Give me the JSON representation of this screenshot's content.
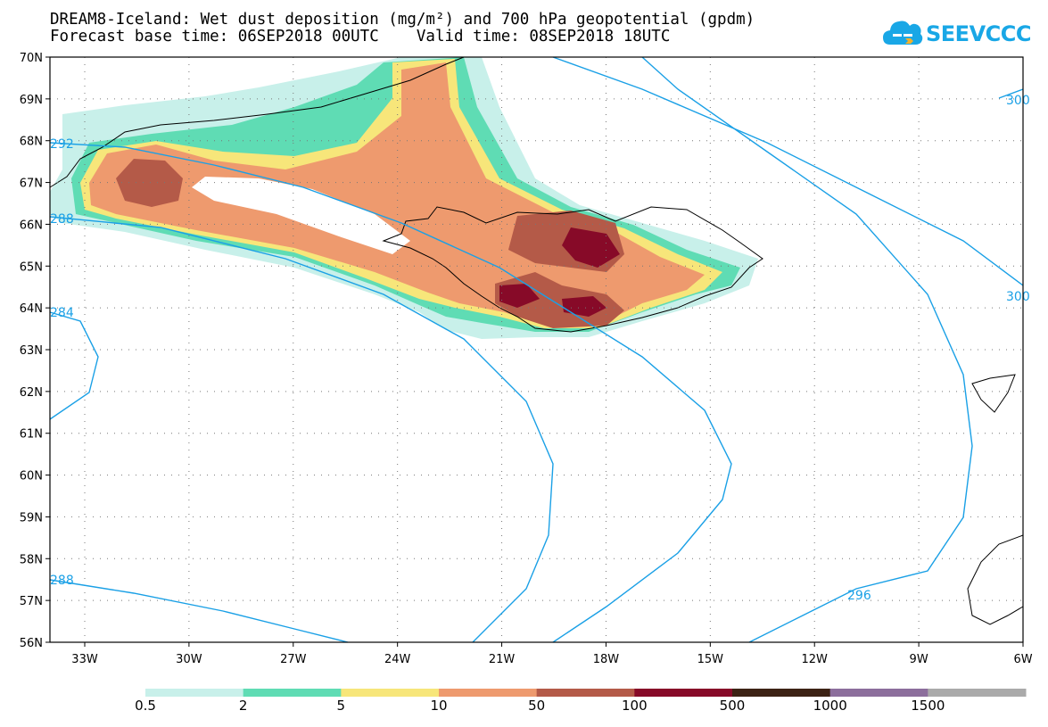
{
  "title": {
    "line1": "DREAM8-Iceland: Wet dust deposition (mg/m²) and 700 hPa geopotential (gpdm)",
    "line2": "Forecast base time: 06SEP2018 00UTC    Valid time: 08SEP2018 18UTC"
  },
  "logo": {
    "text": "SEEVCCC",
    "icon": "cloud-logo-icon"
  },
  "map": {
    "lat_labels": [
      "70N",
      "69N",
      "68N",
      "67N",
      "66N",
      "65N",
      "64N",
      "63N",
      "62N",
      "61N",
      "60N",
      "59N",
      "58N",
      "57N",
      "56N"
    ],
    "lon_labels": [
      "33W",
      "30W",
      "27W",
      "24W",
      "21W",
      "18W",
      "15W",
      "12W",
      "9W",
      "6W"
    ],
    "contour_labels": [
      "292",
      "288",
      "284",
      "288",
      "300",
      "300",
      "296"
    ]
  },
  "colorbar": {
    "labels": [
      "0.5",
      "2",
      "5",
      "10",
      "50",
      "100",
      "500",
      "1000",
      "1500"
    ],
    "colors": [
      "#c8f0ea",
      "#5fdcb4",
      "#f7e67a",
      "#ee9a6e",
      "#b45a48",
      "#870a28",
      "#3c2214",
      "#8c6e9c",
      "#aaaaaa"
    ]
  },
  "colors": {
    "contour": "#1aa0e6",
    "coast": "#000000"
  }
}
